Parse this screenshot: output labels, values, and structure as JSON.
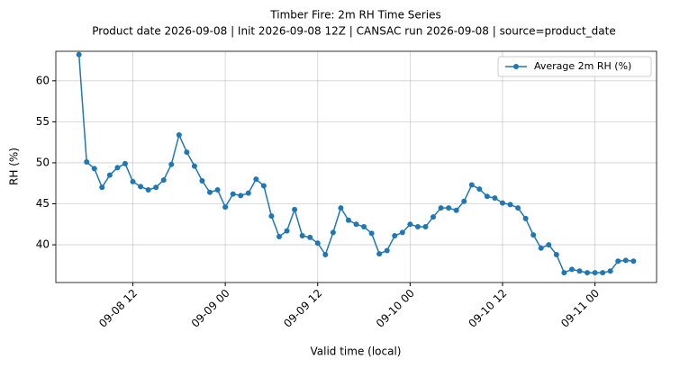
{
  "chart_data": {
    "type": "line",
    "title": "Timber Fire: 2m RH Time Series",
    "subtitle": "Product date 2026-09-08 | Init 2026-09-08 12Z | CANSAC run 2026-09-08 | source=product_date",
    "x_label": "Valid time (local)",
    "y_label": "RH (%)",
    "x": [
      "09-08 05",
      "09-08 06",
      "09-08 07",
      "09-08 08",
      "09-08 09",
      "09-08 10",
      "09-08 11",
      "09-08 12",
      "09-08 13",
      "09-08 14",
      "09-08 15",
      "09-08 16",
      "09-08 17",
      "09-08 18",
      "09-08 19",
      "09-08 20",
      "09-08 21",
      "09-08 22",
      "09-08 23",
      "09-09 00",
      "09-09 01",
      "09-09 02",
      "09-09 03",
      "09-09 04",
      "09-09 05",
      "09-09 06",
      "09-09 07",
      "09-09 08",
      "09-09 09",
      "09-09 10",
      "09-09 11",
      "09-09 12",
      "09-09 13",
      "09-09 14",
      "09-09 15",
      "09-09 16",
      "09-09 17",
      "09-09 18",
      "09-09 19",
      "09-09 20",
      "09-09 21",
      "09-09 22",
      "09-09 23",
      "09-10 00",
      "09-10 01",
      "09-10 02",
      "09-10 03",
      "09-10 04",
      "09-10 05",
      "09-10 06",
      "09-10 07",
      "09-10 08",
      "09-10 09",
      "09-10 10",
      "09-10 11",
      "09-10 12",
      "09-10 13",
      "09-10 14",
      "09-10 15",
      "09-10 16",
      "09-10 17",
      "09-10 18",
      "09-10 19",
      "09-10 20",
      "09-10 21",
      "09-10 22",
      "09-10 23",
      "09-11 00",
      "09-11 01",
      "09-11 02",
      "09-11 03",
      "09-11 04",
      "09-11 05"
    ],
    "series": [
      {
        "name": "Average 2m RH (%)",
        "color": "#1f77b4",
        "values": [
          63.2,
          50.1,
          49.3,
          47.0,
          48.5,
          49.4,
          49.9,
          47.7,
          47.1,
          46.7,
          47.0,
          47.9,
          49.8,
          53.4,
          51.3,
          49.6,
          47.8,
          46.4,
          46.7,
          44.6,
          46.2,
          46.0,
          46.3,
          48.0,
          47.2,
          43.5,
          41.0,
          41.7,
          44.3,
          41.1,
          40.9,
          40.2,
          38.8,
          41.5,
          44.5,
          43.0,
          42.5,
          42.2,
          41.4,
          38.9,
          39.3,
          41.1,
          41.5,
          42.5,
          42.2,
          42.2,
          43.4,
          44.5,
          44.5,
          44.2,
          45.3,
          47.3,
          46.8,
          45.9,
          45.7,
          45.1,
          44.9,
          44.5,
          43.2,
          41.2,
          39.6,
          40.0,
          38.8,
          36.6,
          37.0,
          36.8,
          36.6,
          36.6,
          36.6,
          36.8,
          38.0,
          38.1,
          38.0
        ]
      }
    ],
    "xlim": [
      "09-08 02",
      "09-11 08"
    ],
    "xticks": [
      "09-08 12",
      "09-09 00",
      "09-09 12",
      "09-10 00",
      "09-10 12",
      "09-11 00"
    ],
    "ylim": [
      35.4,
      63.6
    ],
    "yticks": [
      40,
      45,
      50,
      55,
      60
    ],
    "grid": true,
    "legend": "upper right"
  }
}
